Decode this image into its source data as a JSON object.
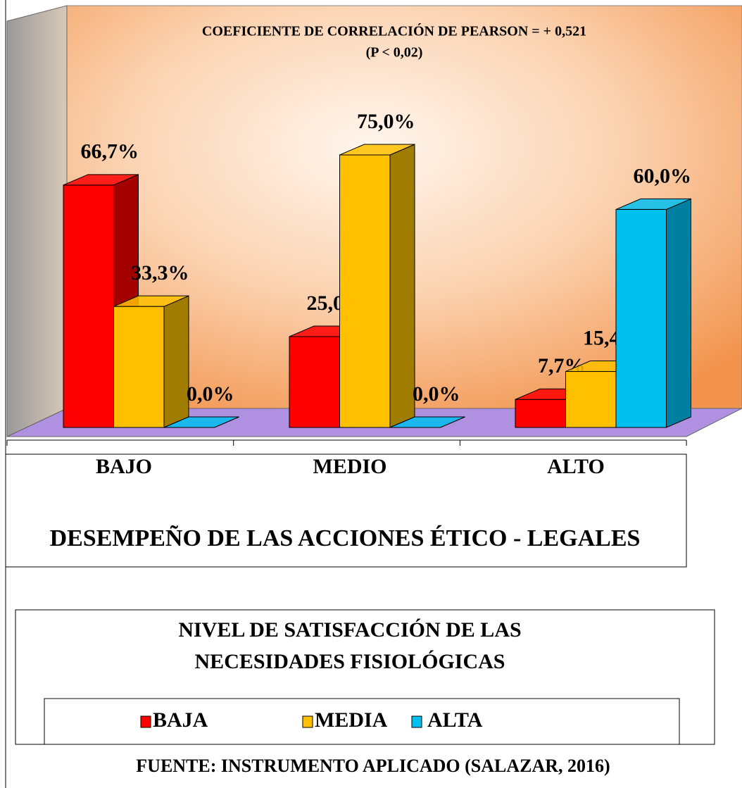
{
  "chart_data": {
    "type": "bar3d",
    "title": "COEFICIENTE DE CORRELACIÓN DE PEARSON = + 0,521",
    "subtitle": "(P < 0,02)",
    "categories": [
      "BAJO",
      "MEDIO",
      "ALTO"
    ],
    "x_label": "DESEMPEÑO DE LAS ACCIONES ÉTICO - LEGALES",
    "legend_title": [
      "NIVEL DE SATISFACCIÓN DE LAS",
      "NECESIDADES FISIOLÓGICAS"
    ],
    "series": [
      {
        "name": "BAJA",
        "color": "#ff0000",
        "side": "#a50000",
        "values": [
          66.7,
          25.0,
          7.7
        ],
        "value_labels": [
          "66,7%",
          "25,0%",
          "7,7%"
        ]
      },
      {
        "name": "MEDIA",
        "color": "#ffc000",
        "side": "#a07c00",
        "values": [
          33.3,
          75.0,
          15.4
        ],
        "value_labels": [
          "33,3%",
          "75,0%",
          "15,4%"
        ]
      },
      {
        "name": "ALTA",
        "color": "#00c0f0",
        "side": "#0080a0",
        "values": [
          0.0,
          0.0,
          60.0
        ],
        "value_labels": [
          "0,0%",
          "0,0%",
          "60,0%"
        ]
      }
    ],
    "ylim": [
      0,
      100
    ],
    "source": "FUENTE: INSTRUMENTO APLICADO (SALAZAR, 2016)"
  }
}
